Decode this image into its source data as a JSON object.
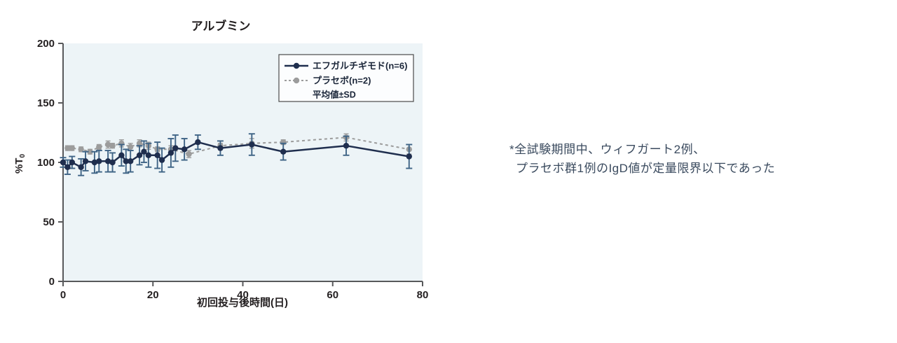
{
  "title": "アルブミン",
  "axes": {
    "y_label": "%T",
    "y_label_sub": "0",
    "x_label": "初回投与後時間(日)",
    "y_ticks": [
      0,
      50,
      100,
      150,
      200
    ],
    "x_ticks": [
      0,
      20,
      40,
      60,
      80
    ]
  },
  "legend": {
    "entries": [
      {
        "label": "エフガルチギモド(n=6)",
        "series": "efgartigimod"
      },
      {
        "label": "プラセボ(n=2)",
        "series": "placebo"
      },
      {
        "label": "平均値±SD",
        "series": ""
      }
    ]
  },
  "annotation": {
    "line1": "*全試験期間中、ウィフガート2例、",
    "line2": "プラセボ群1例のIgD値が定量限界以下であった"
  },
  "colors": {
    "efgartigimod_line": "#1f2e4e",
    "efgartigimod_error": "#3f6486",
    "placebo_line": "#9c9c9c",
    "plot_background": "#edf4f7",
    "axis": "#58595b",
    "legend_border": "#4b4b4b",
    "legend_background": "#fcfdfe",
    "annotation_text": "#3a4a5e"
  },
  "chart_data": {
    "type": "line",
    "title": "アルブミン",
    "xlabel": "初回投与後時間(日)",
    "ylabel": "%T0",
    "xlim": [
      0,
      80
    ],
    "ylim": [
      0,
      200
    ],
    "x_ticks": [
      0,
      20,
      40,
      60,
      80
    ],
    "y_ticks": [
      0,
      50,
      100,
      150,
      200
    ],
    "grid": false,
    "legend_position": "upper-right-inside",
    "error_bars": "mean ± SD",
    "series": [
      {
        "name": "エフガルチギモド(n=6)",
        "style": "solid",
        "color": "#1f2e4e",
        "error_color": "#3f6486",
        "x": [
          0,
          1,
          2,
          4,
          5,
          7,
          8,
          10,
          11,
          13,
          14,
          15,
          17,
          18,
          19,
          21,
          22,
          24,
          25,
          27,
          30,
          35,
          42,
          49,
          63,
          77
        ],
        "y": [
          100,
          96,
          100,
          96,
          101,
          100,
          101,
          101,
          100,
          106,
          101,
          101,
          106,
          109,
          106,
          106,
          102,
          108,
          112,
          111,
          117,
          112,
          115,
          109,
          114,
          105
        ],
        "sd": [
          4,
          6,
          5,
          7,
          8,
          9,
          9,
          9,
          8,
          9,
          10,
          9,
          8,
          9,
          10,
          11,
          10,
          12,
          11,
          9,
          6,
          6,
          9,
          7,
          8,
          10
        ]
      },
      {
        "name": "プラセボ(n=2)",
        "style": "dashed",
        "color": "#9c9c9c",
        "error_color": "#9c9c9c",
        "x": [
          1,
          2,
          4,
          6,
          8,
          10,
          11,
          13,
          15,
          17,
          19,
          21,
          24,
          28,
          35,
          42,
          49,
          63,
          77
        ],
        "y": [
          112,
          112,
          111,
          109,
          113,
          115,
          114,
          116,
          113,
          116,
          114,
          111,
          111,
          107,
          114,
          116,
          117,
          121,
          111
        ],
        "sd": [
          2,
          2,
          2,
          2,
          2,
          3,
          2,
          3,
          3,
          3,
          3,
          2,
          3,
          3,
          2,
          4,
          2,
          3,
          4
        ]
      }
    ]
  }
}
